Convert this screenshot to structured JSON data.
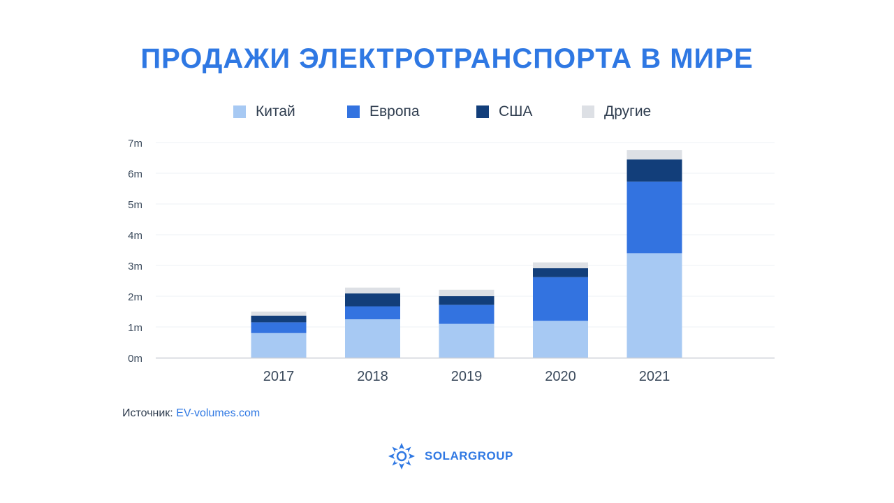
{
  "title": "ПРОДАЖИ ЭЛЕКТРОТРАНСПОРТА В МИРЕ",
  "colors": {
    "title": "#2f78e3",
    "china": "#a7c9f3",
    "europe": "#3373e0",
    "usa": "#123e7a",
    "other": "#dde0e5",
    "grid": "#edf0f4"
  },
  "legend": [
    {
      "label": "Китай",
      "color": "#a7c9f3"
    },
    {
      "label": "Европа",
      "color": "#3373e0"
    },
    {
      "label": "США",
      "color": "#123e7a"
    },
    {
      "label": "Другие",
      "color": "#dde0e5"
    }
  ],
  "chart_data": {
    "type": "bar",
    "stacked": true,
    "categories": [
      "2017",
      "2018",
      "2019",
      "2020",
      "2021"
    ],
    "series": [
      {
        "name": "Китай",
        "values": [
          0.8,
          1.25,
          1.1,
          1.2,
          3.4
        ]
      },
      {
        "name": "Европа",
        "values": [
          0.35,
          0.42,
          0.62,
          1.42,
          2.33
        ]
      },
      {
        "name": "США",
        "values": [
          0.22,
          0.42,
          0.28,
          0.29,
          0.72
        ]
      },
      {
        "name": "Другие",
        "values": [
          0.13,
          0.19,
          0.21,
          0.19,
          0.3
        ]
      }
    ],
    "y_ticks": [
      "0m",
      "1m",
      "2m",
      "3m",
      "4m",
      "5m",
      "6m",
      "7m"
    ],
    "ylim": [
      0,
      7
    ],
    "grid": true,
    "legend_position": "top-center"
  },
  "source": {
    "label": "Источник:",
    "link": "EV-volumes.com"
  },
  "brand": {
    "name": "SOLARGROUP",
    "logo_icon": "sun-swirl-icon"
  }
}
